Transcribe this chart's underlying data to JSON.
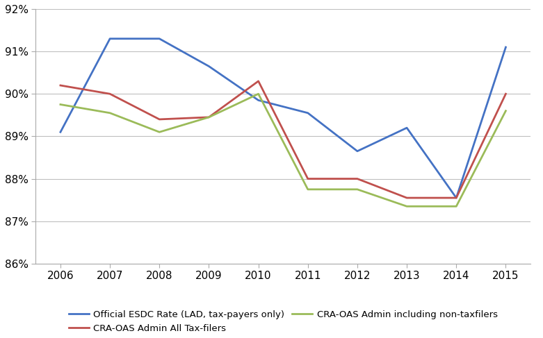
{
  "years": [
    2006,
    2007,
    2008,
    2009,
    2010,
    2011,
    2012,
    2013,
    2014,
    2015
  ],
  "blue_series": [
    89.1,
    91.3,
    91.3,
    90.65,
    89.85,
    89.55,
    88.65,
    89.2,
    87.55,
    91.1
  ],
  "red_series": [
    90.2,
    90.0,
    89.4,
    89.45,
    90.3,
    88.0,
    88.0,
    87.55,
    87.55,
    90.0
  ],
  "green_series": [
    89.75,
    89.55,
    89.1,
    89.45,
    90.0,
    87.75,
    87.75,
    87.35,
    87.35,
    89.6
  ],
  "blue_color": "#4472C4",
  "red_color": "#C0504D",
  "green_color": "#9BBB59",
  "ylim_min": 86.0,
  "ylim_max": 92.0,
  "ytick_values": [
    86,
    87,
    88,
    89,
    90,
    91,
    92
  ],
  "legend_labels": [
    "Official ESDC Rate (LAD, tax-payers only)",
    "CRA-OAS Admin All Tax-filers",
    "CRA-OAS Admin including non-taxfilers"
  ],
  "background_color": "#FFFFFF",
  "grid_color": "#BFBFBF",
  "line_width": 2.0,
  "tick_fontsize": 11
}
